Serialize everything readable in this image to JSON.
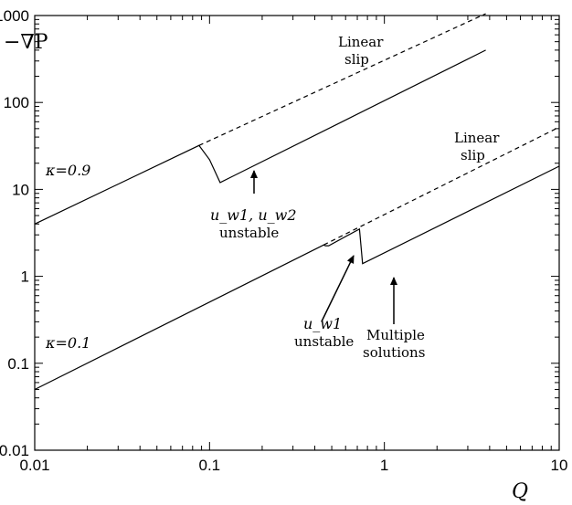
{
  "chart_data": {
    "type": "line",
    "title": "",
    "xlabel": "Q",
    "ylabel": "−∇P",
    "xscale": "log",
    "yscale": "log",
    "xlim": [
      0.01,
      10
    ],
    "ylim": [
      0.01,
      1000
    ],
    "xtick_labels": [
      "0.01",
      "0.1",
      "1",
      "10"
    ],
    "ytick_labels": [
      "0.01",
      "0.1",
      "1",
      "10",
      "100",
      "1000"
    ],
    "grid": false,
    "series": [
      {
        "name": "κ=0.9",
        "style": "solid",
        "points": [
          [
            0.01,
            4
          ],
          [
            0.087,
            32
          ],
          [
            0.1,
            22
          ],
          [
            0.115,
            12
          ],
          [
            3.8,
            400
          ]
        ]
      },
      {
        "name": "",
        "style": "dashed",
        "points": [
          [
            0.087,
            32
          ],
          [
            3.8,
            1050
          ]
        ]
      },
      {
        "name": "κ=0.1",
        "style": "solid",
        "points": [
          [
            0.01,
            0.05
          ],
          [
            0.45,
            2.3
          ],
          [
            0.46,
            2.25
          ],
          [
            0.48,
            2.25
          ],
          [
            0.72,
            3.5
          ],
          [
            0.75,
            1.4
          ],
          [
            10,
            18.5
          ]
        ]
      },
      {
        "name": "",
        "style": "dashed",
        "points": [
          [
            0.45,
            2.3
          ],
          [
            10,
            52
          ]
        ]
      }
    ],
    "annotations": [
      {
        "text": "Linear slip",
        "lines": [
          "Linear",
          "slip"
        ]
      },
      {
        "text": "Linear slip",
        "lines": [
          "Linear",
          "slip"
        ]
      },
      {
        "text": "κ=0.9"
      },
      {
        "text": "κ=0.1"
      },
      {
        "text": "u_w1, u_w2 unstable",
        "lines": [
          "u_w1, u_w2",
          "unstable"
        ]
      },
      {
        "text": "u_w1 unstable",
        "lines": [
          "u_w1",
          "unstable"
        ]
      },
      {
        "text": "Multiple solutions",
        "lines": [
          "Multiple",
          "solutions"
        ]
      }
    ]
  }
}
